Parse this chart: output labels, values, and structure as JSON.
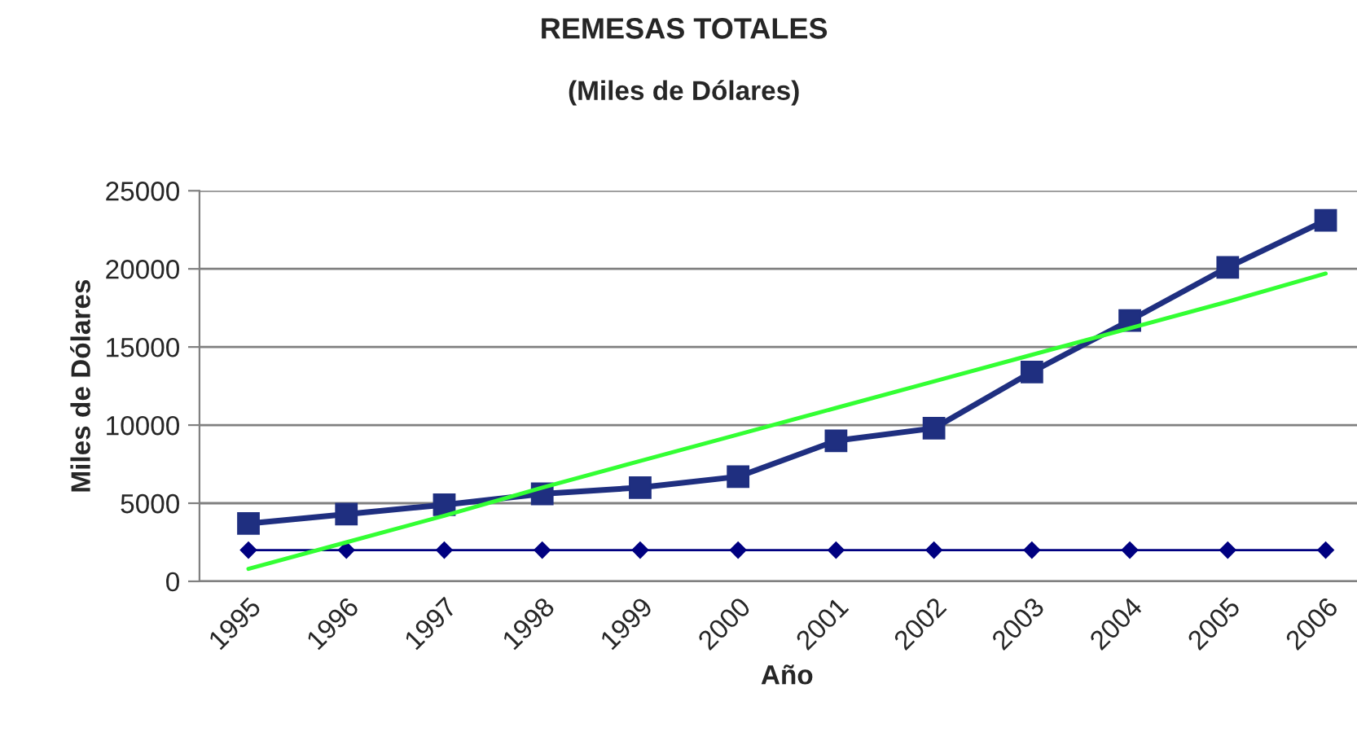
{
  "chart_data": {
    "type": "line",
    "title": "REMESAS TOTALES",
    "subtitle": "(Miles de Dólares)",
    "xlabel": "Año",
    "ylabel": "Miles de Dólares",
    "categories": [
      "1995",
      "1996",
      "1997",
      "1998",
      "1999",
      "2000",
      "2001",
      "2002",
      "2003",
      "2004",
      "2005",
      "2006"
    ],
    "series": [
      {
        "color": "#1f2f80",
        "marker": "square",
        "values": [
          3700,
          4300,
          4900,
          5600,
          6000,
          6700,
          9000,
          9800,
          13400,
          16700,
          20100,
          23100
        ]
      },
      {
        "color": "#000080",
        "marker": "diamond",
        "values": [
          2000,
          2000,
          2000,
          2000,
          2000,
          2000,
          2000,
          2000,
          2000,
          2000,
          2000,
          2000
        ]
      },
      {
        "color": "#33ff33",
        "marker": "none",
        "values": [
          800,
          2500,
          4200,
          6000,
          7700,
          9400,
          11100,
          12800,
          14500,
          16200,
          17900,
          19700
        ]
      }
    ],
    "ylim": [
      0,
      25000
    ],
    "yticks": [
      0,
      5000,
      10000,
      15000,
      20000,
      25000
    ],
    "grid": "y",
    "legend": false
  }
}
